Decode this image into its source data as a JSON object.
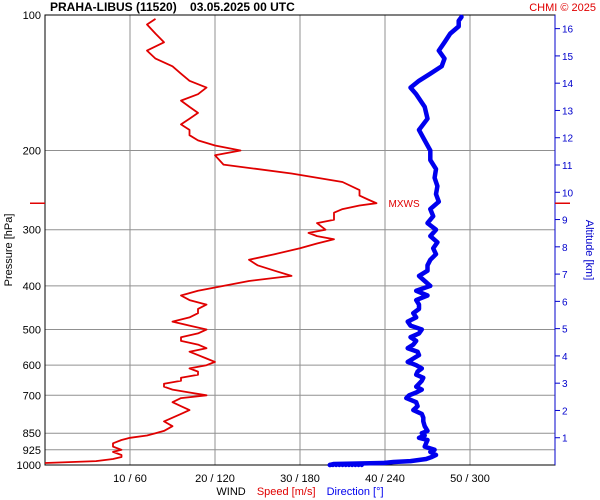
{
  "chart_data": {
    "type": "line",
    "title": "PRAHA-LIBUS (11520)    03.05.2025 00 UTC",
    "credit": "CHMI © 2025",
    "ylabel_left": "Pressure [hPa]",
    "ylabel_right": "Altitude [km]",
    "xlabel_parts": {
      "wind": "WIND",
      "speed": "Speed [m/s]",
      "direction": "Direction [°]"
    },
    "pressure_ticks": [
      100,
      200,
      300,
      400,
      500,
      600,
      700,
      850,
      925,
      1000
    ],
    "pressure_ticks_text": [
      "100",
      "200",
      "300",
      "400",
      "500",
      "600",
      "700",
      "850",
      "925",
      "1000"
    ],
    "altitude_ticks": [
      "1",
      "2",
      "3",
      "4",
      "5",
      "6",
      "7",
      "8",
      "9",
      "10",
      "11",
      "12",
      "13",
      "14",
      "15",
      "16"
    ],
    "x_ticks": [
      {
        "speed": 10,
        "direction": 60,
        "text": "10 / 60"
      },
      {
        "speed": 20,
        "direction": 120,
        "text": "20 / 120"
      },
      {
        "speed": 30,
        "direction": 180,
        "text": "30 / 180"
      },
      {
        "speed": 40,
        "direction": 240,
        "text": "40 / 240"
      },
      {
        "speed": 50,
        "direction": 300,
        "text": "50 / 300"
      }
    ],
    "speed_range": [
      0,
      60
    ],
    "pressure_range": [
      100,
      1000
    ],
    "altitude_range_km": [
      0,
      16.5
    ],
    "max_wind_marker": {
      "label": "MXWS",
      "pressure": 262,
      "speed": 39
    },
    "colors": {
      "speed": "#e00000",
      "direction": "#0000ee",
      "axis_right": "#0000cc",
      "grid": "#909090"
    },
    "series": [
      {
        "name": "Speed [m/s]",
        "pressure": [
          990,
          980,
          970,
          960,
          950,
          935,
          925,
          910,
          895,
          880,
          870,
          860,
          850,
          840,
          820,
          800,
          785,
          770,
          755,
          740,
          725,
          710,
          700,
          690,
          680,
          670,
          660,
          650,
          640,
          630,
          620,
          610,
          600,
          590,
          580,
          570,
          560,
          550,
          540,
          530,
          520,
          510,
          500,
          490,
          480,
          470,
          460,
          450,
          440,
          430,
          420,
          410,
          400,
          390,
          380,
          370,
          360,
          350,
          340,
          330,
          322,
          315,
          310,
          305,
          300,
          290,
          285,
          280,
          275,
          270,
          265,
          262,
          257,
          252,
          245,
          235,
          225,
          215,
          205,
          200,
          195,
          190,
          185,
          180,
          175,
          170,
          165,
          160,
          155,
          150,
          145,
          140,
          135,
          130,
          125,
          120,
          115,
          110,
          105,
          102
        ],
        "speed": [
          0,
          6,
          8,
          9,
          9,
          8,
          9,
          8,
          8,
          9,
          10,
          12,
          13,
          14,
          15,
          14,
          15,
          16,
          17,
          16,
          15,
          16,
          19,
          17,
          15,
          14,
          14,
          16,
          16,
          18,
          18,
          17,
          19,
          20,
          19,
          18,
          17,
          19,
          18,
          16,
          16,
          18,
          19,
          17,
          15,
          17,
          18,
          18,
          19,
          17,
          16,
          18,
          21,
          24,
          29,
          27,
          25,
          24,
          27,
          30,
          32,
          34,
          32,
          31,
          33,
          32,
          34,
          34,
          34,
          35,
          37,
          39,
          38,
          37,
          37,
          35,
          29,
          21,
          20,
          23,
          20,
          18,
          17,
          17,
          16,
          17,
          18,
          17,
          16,
          18,
          19,
          17,
          16,
          15,
          13,
          12,
          14,
          13,
          12,
          13
        ],
        "color": "#e00000"
      },
      {
        "name": "Direction [°]",
        "pressure": [
          1000,
          995,
          990,
          985,
          980,
          970,
          960,
          950,
          935,
          925,
          910,
          895,
          880,
          870,
          860,
          850,
          840,
          820,
          800,
          785,
          770,
          755,
          740,
          725,
          710,
          700,
          690,
          680,
          670,
          660,
          650,
          640,
          630,
          620,
          610,
          600,
          590,
          580,
          570,
          560,
          550,
          540,
          530,
          520,
          510,
          500,
          490,
          480,
          470,
          460,
          450,
          440,
          430,
          420,
          410,
          400,
          390,
          380,
          370,
          360,
          350,
          340,
          330,
          320,
          310,
          300,
          290,
          280,
          270,
          260,
          250,
          240,
          230,
          220,
          210,
          200,
          190,
          180,
          170,
          160,
          150,
          145,
          140,
          135,
          130,
          125,
          120,
          115,
          110,
          106,
          103,
          101
        ],
        "direction": [
          201,
          204,
          239,
          246,
          258,
          269,
          273,
          276,
          272,
          275,
          268,
          269,
          270,
          264,
          268,
          266,
          270,
          268,
          267,
          267,
          266,
          260,
          263,
          262,
          255,
          257,
          262,
          266,
          262,
          264,
          266,
          267,
          262,
          263,
          266,
          262,
          256,
          260,
          264,
          263,
          256,
          260,
          262,
          258,
          264,
          266,
          258,
          256,
          262,
          260,
          264,
          264,
          262,
          270,
          262,
          272,
          268,
          264,
          270,
          270,
          272,
          276,
          274,
          277,
          272,
          276,
          270,
          274,
          272,
          278,
          276,
          277,
          275,
          276,
          272,
          272,
          268,
          264,
          270,
          268,
          262,
          258,
          264,
          272,
          280,
          282,
          278,
          282,
          286,
          292,
          292,
          294
        ],
        "color": "#0000ee"
      }
    ]
  }
}
